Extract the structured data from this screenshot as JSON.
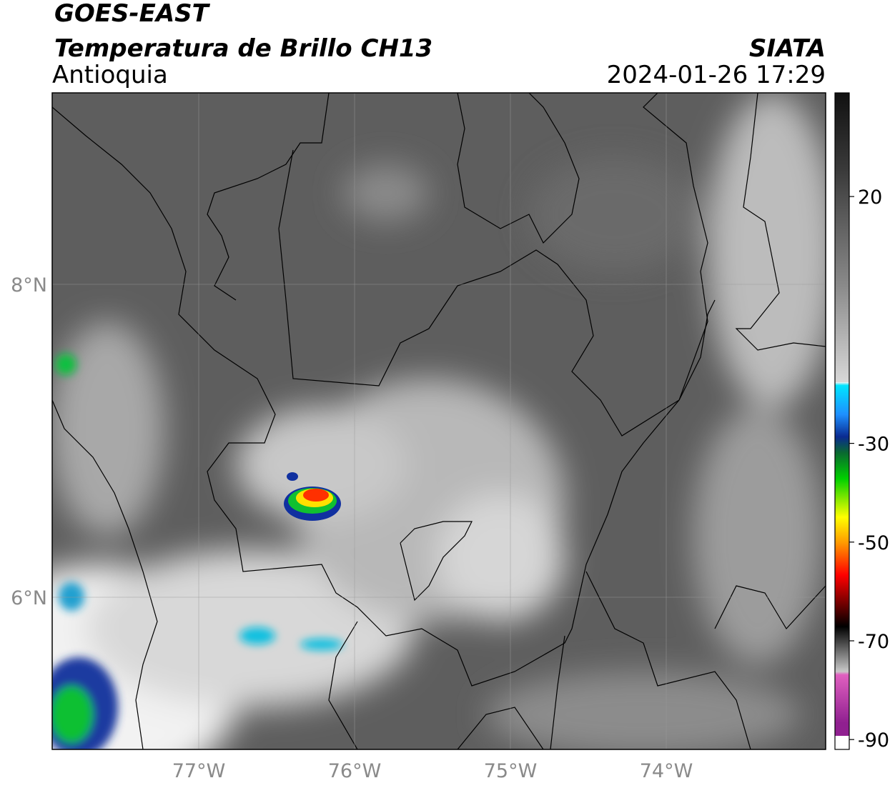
{
  "header": {
    "title": "GOES-EAST",
    "subtitle": "Temperatura de Brillo CH13",
    "region": "Antioquia",
    "source": "SIATA",
    "datetime": "2024-01-26 17:29"
  },
  "map": {
    "lat_labels": [
      "8°N",
      "6°N"
    ],
    "lon_labels": [
      "77°W",
      "76°W",
      "75°W",
      "74°W"
    ]
  },
  "colorbar": {
    "lim": [
      -92,
      41
    ],
    "ticks": [
      20,
      -30,
      -50,
      -70,
      -90
    ]
  }
}
